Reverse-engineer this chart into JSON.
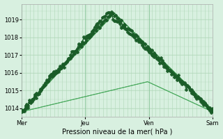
{
  "title": "",
  "xlabel": "Pression niveau de la mer( hPa )",
  "bg_color": "#d8f0e0",
  "grid_color": "#b0d8b8",
  "colors": [
    "#1a5c28",
    "#1a5c28",
    "#2d8b3e",
    "#4aaa5e",
    "#4aaa5e"
  ],
  "linewidths": [
    1.0,
    1.0,
    1.0,
    0.7,
    0.7
  ],
  "use_markers": [
    true,
    true,
    false,
    false,
    false
  ],
  "marker": "P",
  "marker_size": 3.0,
  "ylim": [
    1013.5,
    1019.9
  ],
  "yticks": [
    1014,
    1015,
    1016,
    1017,
    1018,
    1019
  ],
  "day_positions": [
    0,
    48,
    96,
    144
  ],
  "day_labels": [
    "Mer",
    "Jeu",
    "Ven",
    "Sam"
  ],
  "total_points": 145
}
